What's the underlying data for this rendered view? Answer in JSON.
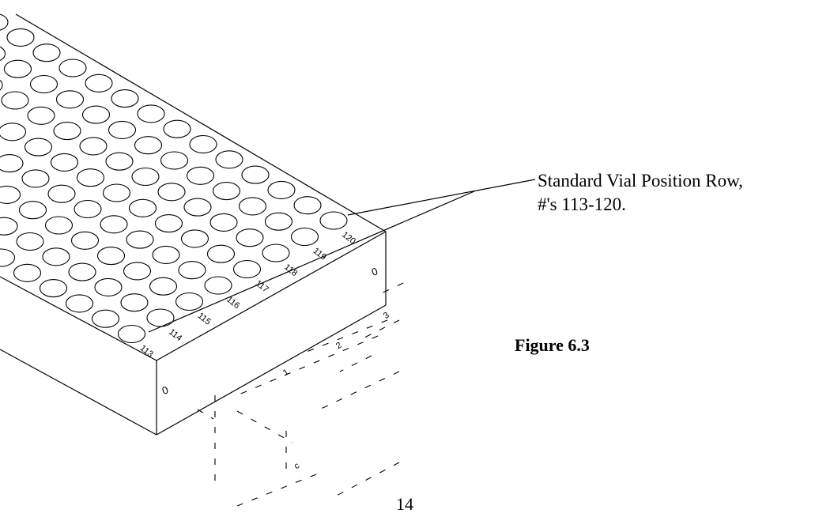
{
  "callout": {
    "line1": "Standard Vial Position Row,",
    "line2": "#'s 113-120."
  },
  "figure_label": "Figure 6.3",
  "page_number": "14",
  "rack": {
    "rows": 8,
    "columns": 15,
    "highlighted_row_numbers": [
      "113",
      "114",
      "115",
      "116",
      "117",
      "118",
      "119",
      "120"
    ],
    "side_marks": [
      "0",
      "0"
    ],
    "base_marks": [
      "1",
      "2",
      "3",
      "c"
    ]
  }
}
